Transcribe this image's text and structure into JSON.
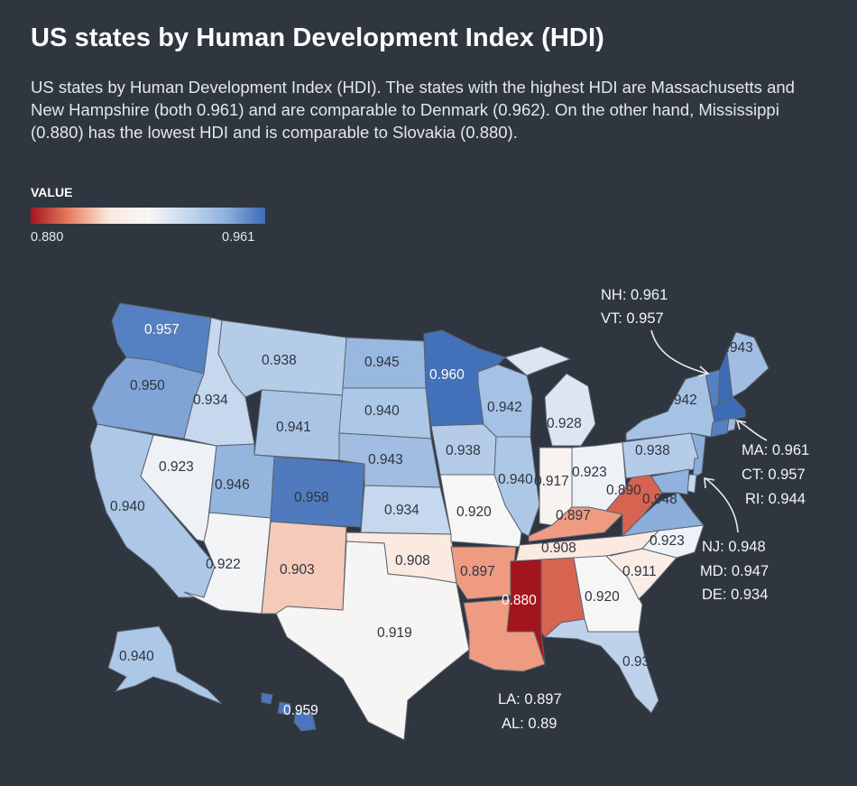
{
  "header": {
    "title": "US states by Human Development Index (HDI)",
    "subtitle": "US states by Human Development Index (HDI). The states with the highest HDI are Massachusetts and New Hampshire (both 0.961) and are comparable to Denmark (0.962). On the other hand, Mississippi (0.880) has the lowest HDI and is comparable to Slovakia (0.880)."
  },
  "legend": {
    "title": "VALUE",
    "min_label": "0.880",
    "max_label": "0.961",
    "min": 0.88,
    "max": 0.961,
    "colors": [
      "#a3151d",
      "#e98062",
      "#fbe9de",
      "#f7f7f7",
      "#c6d8ee",
      "#8eb1dc",
      "#3d6cb6"
    ]
  },
  "states": {
    "WA": {
      "value": 0.957,
      "label": "0.957"
    },
    "OR": {
      "value": 0.95,
      "label": "0.950"
    },
    "CA": {
      "value": 0.94,
      "label": "0.940"
    },
    "NV": {
      "value": 0.923,
      "label": "0.923"
    },
    "ID": {
      "value": 0.934,
      "label": "0.934"
    },
    "MT": {
      "value": 0.938,
      "label": "0.938"
    },
    "WY": {
      "value": 0.941,
      "label": "0.941"
    },
    "UT": {
      "value": 0.946,
      "label": "0.946"
    },
    "AZ": {
      "value": 0.922,
      "label": "0.922"
    },
    "CO": {
      "value": 0.958,
      "label": "0.958"
    },
    "NM": {
      "value": 0.903,
      "label": "0.903"
    },
    "ND": {
      "value": 0.945,
      "label": "0.945"
    },
    "SD": {
      "value": 0.94,
      "label": "0.940"
    },
    "NE": {
      "value": 0.943,
      "label": "0.943"
    },
    "KS": {
      "value": 0.934,
      "label": "0.934"
    },
    "OK": {
      "value": 0.908,
      "label": "0.908"
    },
    "TX": {
      "value": 0.919,
      "label": "0.919"
    },
    "MN": {
      "value": 0.96,
      "label": "0.960"
    },
    "IA": {
      "value": 0.938,
      "label": "0.938"
    },
    "MO": {
      "value": 0.92,
      "label": "0.920"
    },
    "AR": {
      "value": 0.897,
      "label": "0.897"
    },
    "LA": {
      "value": 0.897
    },
    "WI": {
      "value": 0.942,
      "label": "0.942"
    },
    "IL": {
      "value": 0.94,
      "label": "0.940"
    },
    "MI": {
      "value": 0.928,
      "label": "0.928"
    },
    "IN": {
      "value": 0.917,
      "label": "0.917"
    },
    "OH": {
      "value": 0.923,
      "label": "0.923"
    },
    "KY": {
      "value": 0.897,
      "label": "0.897"
    },
    "TN": {
      "value": 0.908,
      "label": "0.908"
    },
    "MS": {
      "value": 0.88,
      "label": "0.880"
    },
    "AL": {
      "value": 0.89
    },
    "GA": {
      "value": 0.92,
      "label": "0.920"
    },
    "FL": {
      "value": 0.936,
      "label": "0.936"
    },
    "SC": {
      "value": 0.911,
      "label": "0.911"
    },
    "NC": {
      "value": 0.923,
      "label": "0.923"
    },
    "VA": {
      "value": 0.948,
      "label": "0.948"
    },
    "WV": {
      "value": 0.89,
      "label": "0.890"
    },
    "PA": {
      "value": 0.938,
      "label": "0.938"
    },
    "NY": {
      "value": 0.942,
      "label": "0.942"
    },
    "ME": {
      "value": 0.943,
      "label": "0.943"
    },
    "AK": {
      "value": 0.94,
      "label": "0.940"
    },
    "HI": {
      "value": 0.959,
      "label": "0.959"
    },
    "NH": {
      "value": 0.961
    },
    "VT": {
      "value": 0.957
    },
    "MA": {
      "value": 0.961
    },
    "CT": {
      "value": 0.957
    },
    "RI": {
      "value": 0.944
    },
    "NJ": {
      "value": 0.948
    },
    "MD": {
      "value": 0.947
    },
    "DE": {
      "value": 0.934
    }
  },
  "callouts": {
    "nh": "NH: 0.961",
    "vt": "VT: 0.957",
    "ma": "MA: 0.961",
    "ct": "CT: 0.957",
    "ri": "RI: 0.944",
    "nj": "NJ: 0.948",
    "md": "MD: 0.947",
    "de": "DE: 0.934",
    "la": "LA:  0.897",
    "al": "AL: 0.89"
  }
}
